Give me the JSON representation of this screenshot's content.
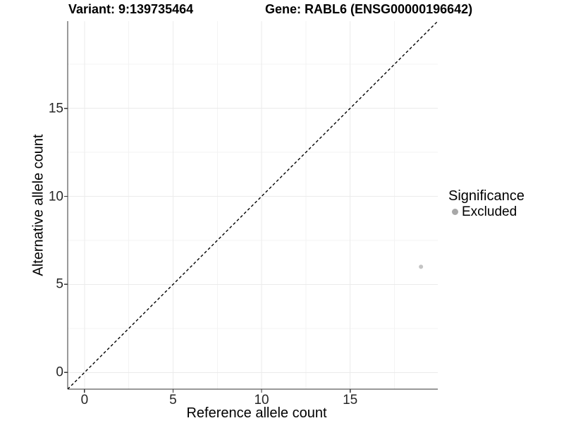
{
  "titles": {
    "variant": "Variant: 9:139735464",
    "gene": "Gene: RABL6 (ENSG00000196642)"
  },
  "legend": {
    "title": "Significance",
    "items": [
      {
        "label": "Excluded",
        "color": "#a8a8a8"
      }
    ]
  },
  "colors": {
    "axis_line": "#333333",
    "tick_mark": "#333333",
    "major_grid": "#ebebeb",
    "minor_grid": "#f3f3f3",
    "reference_line": "#000000",
    "point": "#c4c4c4",
    "text": "#000000"
  },
  "chart_data": {
    "type": "scatter",
    "title": "Variant: 9:139735464 — Gene: RABL6 (ENSG00000196642)",
    "xlabel": "Reference allele count",
    "ylabel": "Alternative allele count",
    "xlim": [
      -0.95,
      19.95
    ],
    "ylim": [
      -0.95,
      19.95
    ],
    "x_major_ticks": [
      0,
      5,
      10,
      15
    ],
    "y_major_ticks": [
      0,
      5,
      10,
      15
    ],
    "x_minor_ticks": [
      2.5,
      7.5,
      12.5,
      17.5
    ],
    "y_minor_ticks": [
      2.5,
      7.5,
      12.5,
      17.5
    ],
    "grid": "major+minor",
    "legend_position": "right",
    "series": [
      {
        "name": "Excluded",
        "color": "#c4c4c4",
        "marker": "circle",
        "marker_radius": 3,
        "points": [
          {
            "x": 19,
            "y": 6
          }
        ]
      }
    ],
    "reference_line": {
      "kind": "identity y=x",
      "style": "dashed",
      "color": "#000000",
      "x_start": -0.95,
      "x_end": 19.95
    }
  }
}
